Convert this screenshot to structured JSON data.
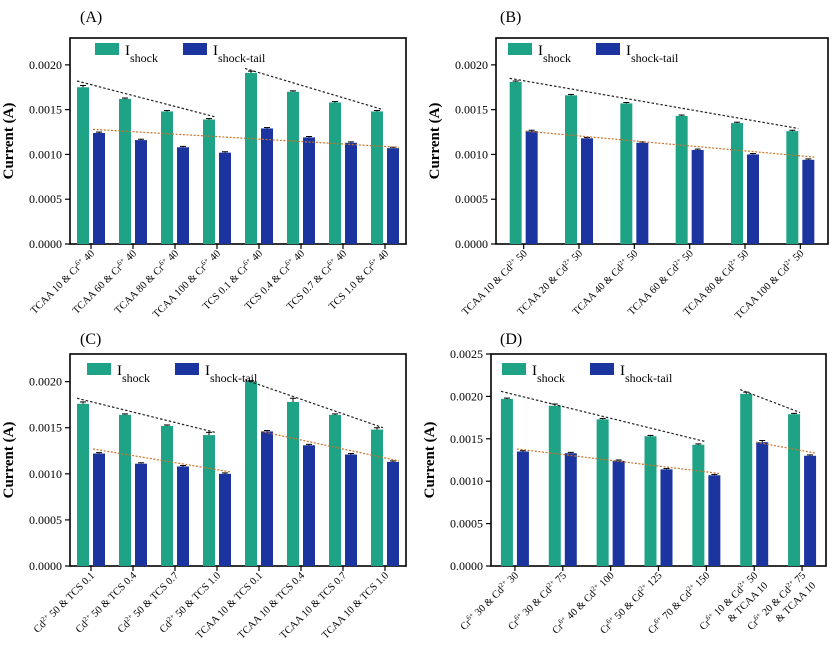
{
  "colors": {
    "shock": "#1fa387",
    "tail": "#1b34a0",
    "trend_shock": "#222222",
    "trend_tail": "#c8732a",
    "axis": "#000000"
  },
  "legend": {
    "shock_main": "I",
    "shock_sub": "shock",
    "tail_main": "I",
    "tail_sub": "shock-tail"
  },
  "chart_data": [
    {
      "panel": "(A)",
      "type": "bar",
      "ylabel": "Current (A)",
      "ylim": [
        0,
        0.0023
      ],
      "yticks": [
        "0.0000",
        "0.0005",
        "0.0010",
        "0.0015",
        "0.0020"
      ],
      "categories": [
        {
          "base": "TCAA 10 & Cr",
          "sup": "6+",
          "tail": " 40"
        },
        {
          "base": "TCAA 60 & Cr",
          "sup": "6+",
          "tail": " 40"
        },
        {
          "base": "TCAA 80 & Cr",
          "sup": "6+",
          "tail": " 40"
        },
        {
          "base": "TCAA 100 & Cr",
          "sup": "6+",
          "tail": " 40"
        },
        {
          "base": "TCS 0.1 & Cr",
          "sup": "6+",
          "tail": " 40"
        },
        {
          "base": "TCS 0.4 & Cr",
          "sup": "6+",
          "tail": " 40"
        },
        {
          "base": "TCS 0.7 & Cr",
          "sup": "6+",
          "tail": " 40"
        },
        {
          "base": "TCS 1.0 & Cr",
          "sup": "6+",
          "tail": " 40"
        }
      ],
      "series": [
        {
          "name": "Ishock",
          "values": [
            0.00175,
            0.00162,
            0.00148,
            0.00139,
            0.00191,
            0.0017,
            0.00158,
            0.00148
          ],
          "errors": [
            2e-05,
            1e-05,
            1e-05,
            1e-05,
            2e-05,
            1e-05,
            1e-05,
            1e-05
          ]
        },
        {
          "name": "Ishock-tail",
          "values": [
            0.00124,
            0.00116,
            0.00108,
            0.00102,
            0.00129,
            0.00119,
            0.00113,
            0.00107
          ],
          "errors": [
            1e-05,
            1e-05,
            1e-05,
            1e-05,
            1e-05,
            1e-05,
            1e-05,
            1e-05
          ]
        }
      ],
      "trendlines": [
        {
          "series": "Ishock",
          "from": 0,
          "to": 3,
          "y": [
            0.00182,
            0.00142
          ]
        },
        {
          "series": "Ishock",
          "from": 4,
          "to": 7,
          "y": [
            0.00196,
            0.0015
          ]
        },
        {
          "series": "Ishock-tail",
          "from": 0,
          "to": 7,
          "y": [
            0.00128,
            0.00108
          ]
        }
      ]
    },
    {
      "panel": "(B)",
      "type": "bar",
      "ylabel": "Current (A)",
      "ylim": [
        0,
        0.0023
      ],
      "yticks": [
        "0.0000",
        "0.0005",
        "0.0010",
        "0.0015",
        "0.0020"
      ],
      "categories": [
        {
          "base": "TCAA 10 & Cd",
          "sup": "2+",
          "tail": " 50"
        },
        {
          "base": "TCAA 20 & Cd",
          "sup": "2+",
          "tail": " 50"
        },
        {
          "base": "TCAA 40 & Cd",
          "sup": "2+",
          "tail": " 50"
        },
        {
          "base": "TCAA 60 & Cd",
          "sup": "2+",
          "tail": " 50"
        },
        {
          "base": "TCAA 80 & Cd",
          "sup": "2+",
          "tail": " 50"
        },
        {
          "base": "TCAA 100 & Cd",
          "sup": "2+",
          "tail": " 50"
        }
      ],
      "series": [
        {
          "name": "Ishock",
          "values": [
            0.00181,
            0.00166,
            0.00157,
            0.00143,
            0.00135,
            0.00126
          ],
          "errors": [
            1e-05,
            1e-05,
            1e-05,
            1e-05,
            1e-05,
            1e-05
          ]
        },
        {
          "name": "Ishock-tail",
          "values": [
            0.00126,
            0.00118,
            0.00113,
            0.00105,
            0.001,
            0.00094
          ],
          "errors": [
            1e-05,
            1e-05,
            1e-05,
            1e-05,
            1e-05,
            1e-05
          ]
        }
      ],
      "trendlines": [
        {
          "series": "Ishock",
          "from": 0,
          "to": 5,
          "y": [
            0.00185,
            0.00129
          ]
        },
        {
          "series": "Ishock-tail",
          "from": 0,
          "to": 5,
          "y": [
            0.00126,
            0.00097
          ]
        }
      ]
    },
    {
      "panel": "(C)",
      "type": "bar",
      "ylabel": "Current (A)",
      "ylim": [
        0,
        0.0023
      ],
      "yticks": [
        "0.0000",
        "0.0005",
        "0.0010",
        "0.0015",
        "0.0020"
      ],
      "categories": [
        {
          "base": "Cd",
          "sup": "2+",
          "tail": " 50 & TCS 0.1"
        },
        {
          "base": "Cd",
          "sup": "2+",
          "tail": " 50 & TCS 0.4"
        },
        {
          "base": "Cd",
          "sup": "2+",
          "tail": " 50 & TCS 0.7"
        },
        {
          "base": "Cd",
          "sup": "2+",
          "tail": " 50 & TCS 1.0"
        },
        {
          "base": "TCAA 10 & TCS 0.1",
          "sup": "",
          "tail": ""
        },
        {
          "base": "TCAA 10 & TCS 0.4",
          "sup": "",
          "tail": ""
        },
        {
          "base": "TCAA 10 & TCS 0.7",
          "sup": "",
          "tail": ""
        },
        {
          "base": "TCAA 10 & TCS 1.0",
          "sup": "",
          "tail": ""
        }
      ],
      "series": [
        {
          "name": "Ishock",
          "values": [
            0.00176,
            0.00164,
            0.00152,
            0.00142,
            0.002,
            0.00178,
            0.00164,
            0.00148
          ],
          "errors": [
            2e-05,
            1e-05,
            1e-05,
            3e-05,
            1e-05,
            4e-05,
            1e-05,
            2e-05
          ]
        },
        {
          "name": "Ishock-tail",
          "values": [
            0.00122,
            0.00111,
            0.00108,
            0.001,
            0.00146,
            0.00131,
            0.00121,
            0.00113
          ],
          "errors": [
            1e-05,
            1e-05,
            1e-05,
            1e-05,
            1e-05,
            1e-05,
            1e-05,
            1e-05
          ]
        }
      ],
      "trendlines": [
        {
          "series": "Ishock",
          "from": 0,
          "to": 3,
          "y": [
            0.00182,
            0.00145
          ]
        },
        {
          "series": "Ishock",
          "from": 4,
          "to": 7,
          "y": [
            0.00202,
            0.0015
          ]
        },
        {
          "series": "Ishock-tail",
          "from": 0,
          "to": 3,
          "y": [
            0.00127,
            0.00102
          ]
        },
        {
          "series": "Ishock-tail",
          "from": 4,
          "to": 7,
          "y": [
            0.00146,
            0.00114
          ]
        }
      ]
    },
    {
      "panel": "(D)",
      "type": "bar",
      "ylabel": "Current (A)",
      "ylim": [
        0,
        0.0025
      ],
      "yticks": [
        "0.0000",
        "0.0005",
        "0.0010",
        "0.0015",
        "0.0020",
        "0.0025"
      ],
      "categories": [
        {
          "base": "Cr",
          "sup": "6+",
          "tail": " 30 & Cd",
          "sup2": "2+",
          "tail2": " 30"
        },
        {
          "base": "Cr",
          "sup": "6+",
          "tail": " 30 & Cd",
          "sup2": "2+",
          "tail2": " 75"
        },
        {
          "base": "Cr",
          "sup": "6+",
          "tail": " 40 & Cd",
          "sup2": "2+",
          "tail2": " 100"
        },
        {
          "base": "Cr",
          "sup": "6+",
          "tail": " 50 & Cd",
          "sup2": "2+",
          "tail2": " 125"
        },
        {
          "base": "Cr",
          "sup": "6+",
          "tail": " 70 & Cd",
          "sup2": "2+",
          "tail2": " 150"
        },
        {
          "base": "Cr",
          "sup": "6+",
          "tail": " 10 & Cd",
          "sup2": "2+",
          "tail2": " 50",
          "line2": "& TCAA 10"
        },
        {
          "base": "Cr",
          "sup": "6+",
          "tail": " 20 & Cd",
          "sup2": "2+",
          "tail2": " 75",
          "line2": "& TCAA 10"
        }
      ],
      "series": [
        {
          "name": "Ishock",
          "values": [
            0.00197,
            0.00189,
            0.00173,
            0.00153,
            0.00143,
            0.00203,
            0.00179
          ],
          "errors": [
            1e-05,
            2e-05,
            1e-05,
            1e-05,
            1e-05,
            2e-05,
            1e-05
          ]
        },
        {
          "name": "Ishock-tail",
          "values": [
            0.00135,
            0.00133,
            0.00124,
            0.00114,
            0.00107,
            0.00146,
            0.0013
          ],
          "errors": [
            1e-05,
            1e-05,
            1e-05,
            1e-05,
            1e-05,
            2e-05,
            1e-05
          ]
        }
      ],
      "trendlines": [
        {
          "series": "Ishock",
          "from": 0,
          "to": 4,
          "y": [
            0.00206,
            0.00147
          ]
        },
        {
          "series": "Ishock",
          "from": 5,
          "to": 6,
          "y": [
            0.00208,
            0.00181
          ]
        },
        {
          "series": "Ishock-tail",
          "from": 0,
          "to": 4,
          "y": [
            0.00138,
            0.00109
          ]
        },
        {
          "series": "Ishock-tail",
          "from": 5,
          "to": 6,
          "y": [
            0.00146,
            0.00133
          ]
        }
      ]
    }
  ]
}
